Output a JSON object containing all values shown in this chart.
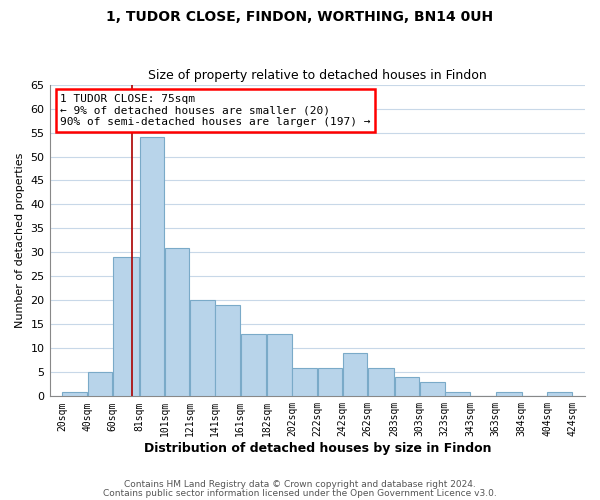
{
  "title": "1, TUDOR CLOSE, FINDON, WORTHING, BN14 0UH",
  "subtitle": "Size of property relative to detached houses in Findon",
  "xlabel": "Distribution of detached houses by size in Findon",
  "ylabel": "Number of detached properties",
  "bar_color": "#b8d4ea",
  "bar_edge_color": "#7aaac8",
  "red_line_x": 75,
  "annotation_lines": [
    "1 TUDOR CLOSE: 75sqm",
    "← 9% of detached houses are smaller (20)",
    "90% of semi-detached houses are larger (197) →"
  ],
  "bins": [
    20,
    40,
    60,
    81,
    101,
    121,
    141,
    161,
    182,
    202,
    222,
    242,
    262,
    283,
    303,
    323,
    343,
    363,
    384,
    404,
    424
  ],
  "counts": [
    1,
    5,
    29,
    54,
    31,
    20,
    19,
    13,
    13,
    6,
    6,
    9,
    6,
    4,
    3,
    1,
    0,
    1,
    0,
    1
  ],
  "tick_labels": [
    "20sqm",
    "40sqm",
    "60sqm",
    "81sqm",
    "101sqm",
    "121sqm",
    "141sqm",
    "161sqm",
    "182sqm",
    "202sqm",
    "222sqm",
    "242sqm",
    "262sqm",
    "283sqm",
    "303sqm",
    "323sqm",
    "343sqm",
    "363sqm",
    "384sqm",
    "404sqm",
    "424sqm"
  ],
  "ylim": [
    0,
    65
  ],
  "yticks": [
    0,
    5,
    10,
    15,
    20,
    25,
    30,
    35,
    40,
    45,
    50,
    55,
    60,
    65
  ],
  "footer1": "Contains HM Land Registry data © Crown copyright and database right 2024.",
  "footer2": "Contains public sector information licensed under the Open Government Licence v3.0.",
  "background_color": "#ffffff",
  "grid_color": "#c8d8e8"
}
